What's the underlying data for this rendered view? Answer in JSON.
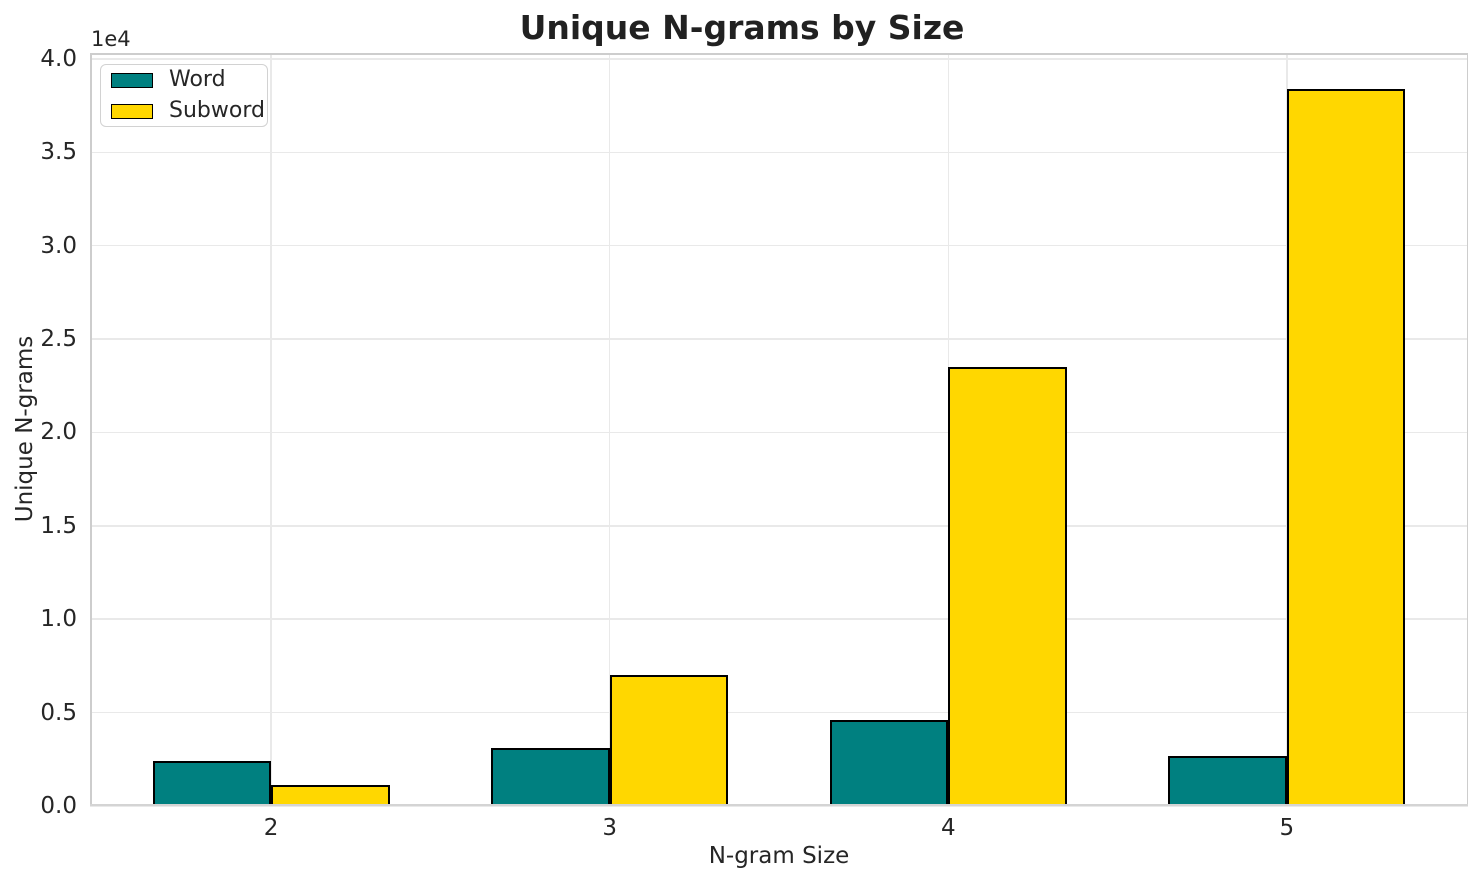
{
  "chart_data": {
    "type": "bar",
    "title": "Unique N-grams by Size",
    "xlabel": "N-gram Size",
    "ylabel": "Unique N-grams",
    "y_offset_text": "1e4",
    "categories": [
      "2",
      "3",
      "4",
      "5"
    ],
    "series": [
      {
        "name": "Word",
        "color": "#008080",
        "values": [
          2400,
          3100,
          4600,
          2700
        ]
      },
      {
        "name": "Subword",
        "color": "#FFD700",
        "values": [
          1150,
          7000,
          23500,
          38400
        ]
      }
    ],
    "bar_edge_color": "#000000",
    "ylim": [
      0,
      40320
    ],
    "yticks": {
      "values": [
        0,
        5000,
        10000,
        15000,
        20000,
        25000,
        30000,
        35000,
        40000
      ],
      "labels": [
        "0.0",
        "0.5",
        "1.0",
        "1.5",
        "2.0",
        "2.5",
        "3.0",
        "3.5",
        "4.0"
      ]
    },
    "grid": true,
    "legend_position": "upper left",
    "background_color": "#ffffff",
    "grid_color": "#e9e9e9",
    "text_color": "#262626"
  }
}
